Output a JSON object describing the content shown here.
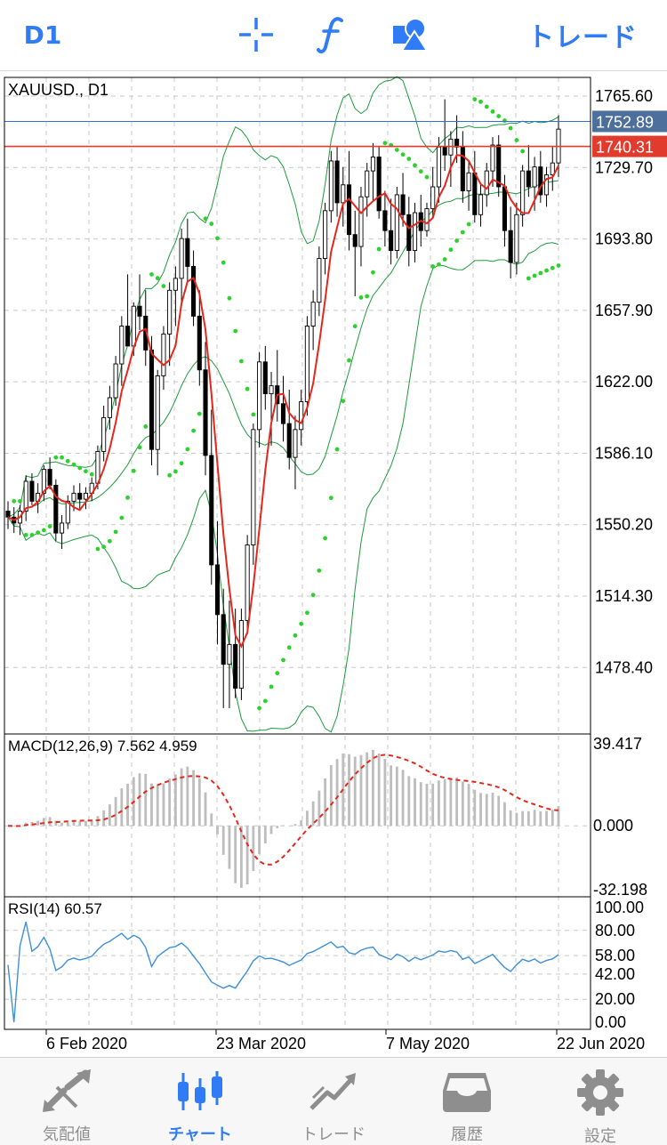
{
  "toolbar": {
    "timeframe": "D1",
    "crosshair_icon": "crosshair-icon",
    "indicator_icon": "function-icon",
    "objects_icon": "shapes-icon",
    "trade_label": "トレード"
  },
  "chart": {
    "symbol_label": "XAUUSD., D1",
    "price_ticks": [
      "1765.60",
      "1729.70",
      "1693.80",
      "1657.90",
      "1622.00",
      "1586.10",
      "1550.20",
      "1514.30",
      "1478.40"
    ],
    "ask_line": "1752.89",
    "bid_line": "1740.31",
    "colors": {
      "bid": "#e03b2c",
      "ask": "#2f6fd6",
      "bollinger": "#1e9a3c",
      "sar": "#2cd12c",
      "ma": "#e5271b",
      "macd_signal": "#e5271b",
      "rsi": "#3d8fd8"
    },
    "macd": {
      "label": "MACD(12,26,9) 7.562 4.959",
      "ticks": [
        "39.417",
        "0.000",
        "-32.198"
      ]
    },
    "rsi": {
      "label": "RSI(14) 60.57",
      "ticks": [
        "100.00",
        "80.00",
        "58.00",
        "42.00",
        "20.00",
        "0.00"
      ]
    },
    "date_labels": [
      "6 Feb 2020",
      "23 Mar 2020",
      "7 May 2020",
      "22 Jun 2020"
    ]
  },
  "chart_data": {
    "type": "candlestick",
    "symbol": "XAUUSD.",
    "timeframe": "D1",
    "x_range": [
      "2020-01-16",
      "2020-06-22"
    ],
    "ylim": [
      1445,
      1775
    ],
    "ohlc": [
      [
        1557,
        1562,
        1548,
        1554
      ],
      [
        1554,
        1559,
        1546,
        1551
      ],
      [
        1551,
        1560,
        1545,
        1557
      ],
      [
        1557,
        1575,
        1552,
        1572
      ],
      [
        1572,
        1576,
        1560,
        1562
      ],
      [
        1562,
        1571,
        1556,
        1566
      ],
      [
        1566,
        1580,
        1562,
        1578
      ],
      [
        1578,
        1584,
        1568,
        1570
      ],
      [
        1570,
        1573,
        1542,
        1546
      ],
      [
        1546,
        1555,
        1538,
        1551
      ],
      [
        1551,
        1565,
        1548,
        1562
      ],
      [
        1562,
        1570,
        1557,
        1566
      ],
      [
        1566,
        1571,
        1558,
        1563
      ],
      [
        1563,
        1569,
        1558,
        1566
      ],
      [
        1566,
        1574,
        1562,
        1571
      ],
      [
        1571,
        1590,
        1568,
        1587
      ],
      [
        1587,
        1610,
        1582,
        1604
      ],
      [
        1604,
        1620,
        1598,
        1614
      ],
      [
        1614,
        1635,
        1610,
        1631
      ],
      [
        1631,
        1655,
        1620,
        1650
      ],
      [
        1650,
        1676,
        1640,
        1640
      ],
      [
        1640,
        1662,
        1635,
        1660
      ],
      [
        1660,
        1676,
        1648,
        1655
      ],
      [
        1655,
        1668,
        1630,
        1638
      ],
      [
        1638,
        1645,
        1580,
        1588
      ],
      [
        1588,
        1628,
        1575,
        1625
      ],
      [
        1625,
        1650,
        1618,
        1646
      ],
      [
        1646,
        1672,
        1630,
        1668
      ],
      [
        1668,
        1680,
        1650,
        1674
      ],
      [
        1674,
        1699,
        1662,
        1694
      ],
      [
        1694,
        1704,
        1672,
        1680
      ],
      [
        1680,
        1688,
        1650,
        1655
      ],
      [
        1655,
        1668,
        1620,
        1628
      ],
      [
        1628,
        1642,
        1575,
        1585
      ],
      [
        1585,
        1608,
        1520,
        1530
      ],
      [
        1530,
        1552,
        1490,
        1505
      ],
      [
        1505,
        1518,
        1458,
        1480
      ],
      [
        1480,
        1512,
        1458,
        1490
      ],
      [
        1490,
        1508,
        1463,
        1468
      ],
      [
        1468,
        1508,
        1462,
        1502
      ],
      [
        1502,
        1545,
        1495,
        1540
      ],
      [
        1540,
        1601,
        1530,
        1598
      ],
      [
        1598,
        1637,
        1589,
        1632
      ],
      [
        1632,
        1640,
        1608,
        1616
      ],
      [
        1616,
        1627,
        1590,
        1620
      ],
      [
        1620,
        1638,
        1602,
        1611
      ],
      [
        1611,
        1625,
        1592,
        1601
      ],
      [
        1601,
        1618,
        1578,
        1584
      ],
      [
        1584,
        1605,
        1568,
        1598
      ],
      [
        1598,
        1618,
        1590,
        1612
      ],
      [
        1612,
        1655,
        1605,
        1650
      ],
      [
        1650,
        1668,
        1638,
        1662
      ],
      [
        1662,
        1690,
        1655,
        1684
      ],
      [
        1684,
        1712,
        1676,
        1708
      ],
      [
        1708,
        1738,
        1702,
        1733
      ],
      [
        1733,
        1740,
        1705,
        1712
      ],
      [
        1712,
        1730,
        1700,
        1721
      ],
      [
        1721,
        1738,
        1688,
        1696
      ],
      [
        1696,
        1708,
        1665,
        1690
      ],
      [
        1690,
        1720,
        1680,
        1715
      ],
      [
        1715,
        1732,
        1705,
        1728
      ],
      [
        1728,
        1742,
        1713,
        1735
      ],
      [
        1735,
        1740,
        1704,
        1708
      ],
      [
        1708,
        1718,
        1690,
        1698
      ],
      [
        1698,
        1714,
        1681,
        1688
      ],
      [
        1688,
        1720,
        1684,
        1716
      ],
      [
        1716,
        1727,
        1700,
        1706
      ],
      [
        1706,
        1715,
        1680,
        1688
      ],
      [
        1688,
        1712,
        1682,
        1707
      ],
      [
        1707,
        1716,
        1690,
        1698
      ],
      [
        1698,
        1712,
        1695,
        1709
      ],
      [
        1709,
        1730,
        1705,
        1720
      ],
      [
        1720,
        1745,
        1712,
        1740
      ],
      [
        1740,
        1764,
        1728,
        1736
      ],
      [
        1736,
        1748,
        1720,
        1744
      ],
      [
        1744,
        1756,
        1732,
        1740
      ],
      [
        1740,
        1748,
        1712,
        1718
      ],
      [
        1718,
        1733,
        1708,
        1727
      ],
      [
        1727,
        1738,
        1702,
        1706
      ],
      [
        1706,
        1722,
        1700,
        1716
      ],
      [
        1716,
        1732,
        1710,
        1728
      ],
      [
        1728,
        1745,
        1720,
        1741
      ],
      [
        1741,
        1746,
        1715,
        1720
      ],
      [
        1720,
        1726,
        1690,
        1698
      ],
      [
        1698,
        1710,
        1674,
        1682
      ],
      [
        1682,
        1712,
        1676,
        1706
      ],
      [
        1706,
        1731,
        1700,
        1728
      ],
      [
        1728,
        1741,
        1715,
        1720
      ],
      [
        1720,
        1735,
        1708,
        1730
      ],
      [
        1730,
        1738,
        1712,
        1716
      ],
      [
        1716,
        1730,
        1710,
        1726
      ],
      [
        1726,
        1740,
        1718,
        1732
      ],
      [
        1732,
        1756,
        1725,
        1749
      ]
    ],
    "bid": 1740.31,
    "ask": 1752.89,
    "indicators": [
      "Bollinger Bands",
      "Parabolic SAR",
      "Moving Average",
      {
        "name": "MACD(12,26,9)",
        "main": 7.562,
        "signal": 4.959,
        "range": [
          -32.198,
          39.417
        ]
      },
      {
        "name": "RSI(14)",
        "value": 60.57,
        "range": [
          0,
          100
        ]
      }
    ],
    "x_labels": [
      "6 Feb 2020",
      "23 Mar 2020",
      "7 May 2020",
      "22 Jun 2020"
    ]
  },
  "nav": {
    "items": [
      {
        "label": "気配値",
        "icon": "quotes-icon"
      },
      {
        "label": "チャート",
        "icon": "chart-candles-icon"
      },
      {
        "label": "トレード",
        "icon": "trade-icon"
      },
      {
        "label": "履歴",
        "icon": "history-inbox-icon"
      },
      {
        "label": "設定",
        "icon": "settings-gear-icon"
      }
    ],
    "active_index": 1
  }
}
